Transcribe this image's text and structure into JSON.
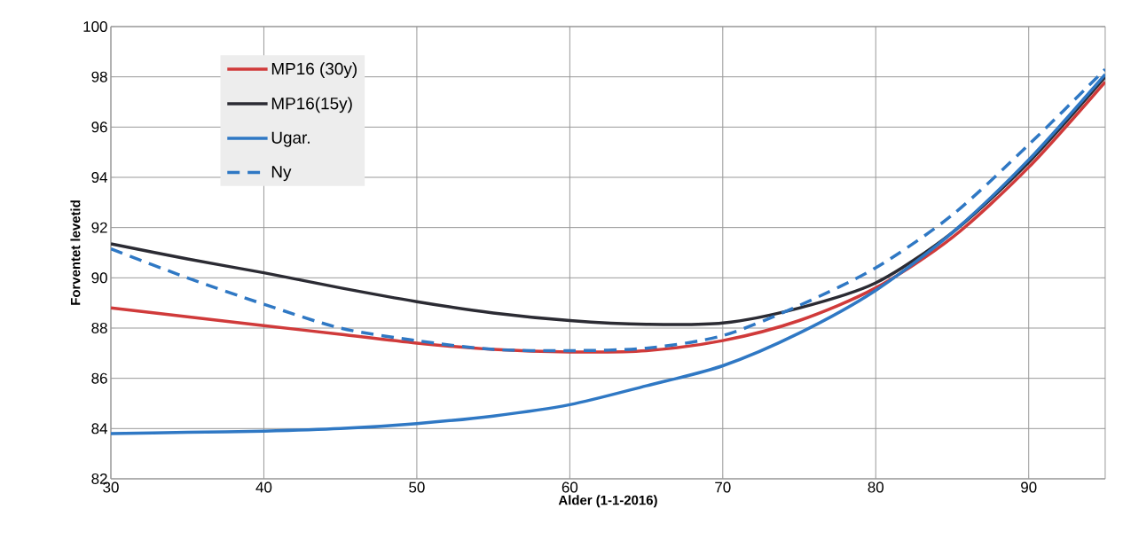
{
  "chart_data": {
    "type": "line",
    "xlabel": "Alder (1-1-2016)",
    "ylabel": "Forventet levetid",
    "x": [
      30,
      35,
      40,
      45,
      50,
      55,
      60,
      65,
      70,
      75,
      80,
      85,
      90,
      95
    ],
    "xlim": [
      30,
      95
    ],
    "xticks": [
      30,
      40,
      50,
      60,
      70,
      80,
      90
    ],
    "ylim": [
      82,
      100
    ],
    "yticks": [
      82,
      84,
      86,
      88,
      90,
      92,
      94,
      96,
      98,
      100
    ],
    "grid": true,
    "legend": "top left",
    "series": [
      {
        "name": "MP16 (30y)",
        "color": "#d03a3a",
        "values": [
          88.8,
          88.45,
          88.1,
          87.75,
          87.4,
          87.15,
          87.05,
          87.1,
          87.5,
          88.3,
          89.6,
          91.6,
          94.4,
          97.8
        ]
      },
      {
        "name": "MP16(15y)",
        "color": "#2b2b33",
        "values": [
          91.35,
          90.75,
          90.2,
          89.6,
          89.05,
          88.6,
          88.3,
          88.15,
          88.2,
          88.8,
          89.8,
          91.8,
          94.6,
          98.0
        ]
      },
      {
        "name": "Ugar.",
        "color": "#2f78c4",
        "values": [
          83.8,
          83.85,
          83.9,
          84.0,
          84.2,
          84.5,
          84.95,
          85.7,
          86.5,
          87.8,
          89.5,
          91.8,
          94.7,
          98.1
        ]
      },
      {
        "name": "Ny",
        "color": "#2f78c4",
        "line_style": "dashed",
        "values": [
          91.15,
          90.0,
          88.95,
          88.0,
          87.5,
          87.15,
          87.1,
          87.2,
          87.7,
          88.9,
          90.4,
          92.5,
          95.3,
          98.3
        ]
      }
    ]
  }
}
